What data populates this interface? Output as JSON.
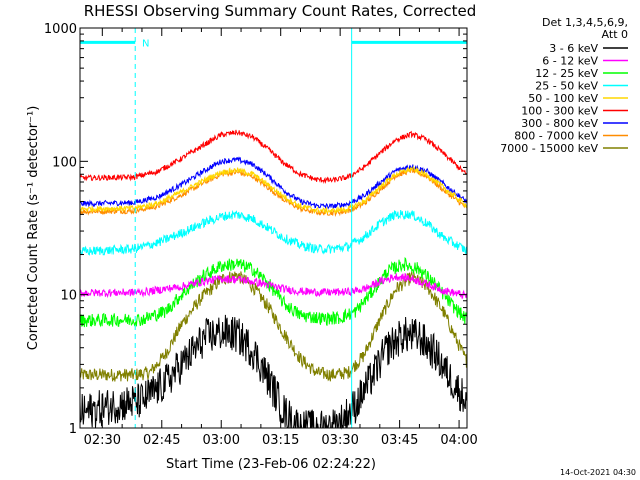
{
  "chart_data": {
    "type": "line",
    "title": "RHESSI Observing Summary Count Rates, Corrected",
    "xlabel": "Start Time (23-Feb-06 02:24:22)",
    "ylabel": "Corrected Count Rate (s⁻¹ detector⁻¹)",
    "yscale": "log",
    "ylim": [
      1,
      1000
    ],
    "xlim_minutes": [
      24.37,
      122.0
    ],
    "x_ticks": [
      {
        "label": "02:30",
        "minutes": 30
      },
      {
        "label": "02:45",
        "minutes": 45
      },
      {
        "label": "03:00",
        "minutes": 60
      },
      {
        "label": "03:15",
        "minutes": 75
      },
      {
        "label": "03:30",
        "minutes": 90
      },
      {
        "label": "03:45",
        "minutes": 105
      },
      {
        "label": "04:00",
        "minutes": 120
      }
    ],
    "y_ticks": [
      {
        "label": "1",
        "value": 1
      },
      {
        "label": "10",
        "value": 10
      },
      {
        "label": "100",
        "value": 100
      },
      {
        "label": "1000",
        "value": 1000
      }
    ],
    "legend_header": [
      "Det 1,3,4,5,6,9,",
      "Att 0"
    ],
    "series": [
      {
        "name": "3 - 6 keV",
        "color": "#000000",
        "t": [
          24.4,
          34,
          40,
          46,
          52,
          56,
          60,
          64,
          68,
          72,
          76,
          80,
          86,
          90,
          94,
          98,
          102,
          106,
          110,
          114,
          118,
          121.8
        ],
        "v": [
          1.3,
          1.5,
          1.6,
          2.2,
          3.5,
          4.8,
          5.2,
          5.0,
          3.8,
          2.3,
          1.3,
          1.0,
          1.0,
          1.1,
          1.5,
          2.4,
          4.0,
          5.0,
          4.8,
          3.6,
          2.3,
          1.6
        ],
        "noise": 0.14
      },
      {
        "name": "6 - 12 keV",
        "color": "#ff00ff",
        "t": [
          24.4,
          40,
          50,
          55,
          60,
          65,
          70,
          76,
          80,
          86,
          92,
          96,
          100,
          104,
          108,
          112,
          116,
          121.8
        ],
        "v": [
          10.3,
          10.4,
          11.5,
          12.5,
          13.2,
          13.0,
          12.2,
          11.0,
          10.6,
          10.4,
          10.5,
          11.0,
          12.5,
          13.7,
          13.2,
          12.0,
          10.8,
          9.8
        ],
        "noise": 0.03
      },
      {
        "name": "12 - 25 keV",
        "color": "#00ff00",
        "t": [
          24.4,
          40,
          46,
          50,
          55,
          60,
          64,
          68,
          72,
          76,
          80,
          86,
          90,
          94,
          98,
          102,
          106,
          110,
          114,
          118,
          121.8
        ],
        "v": [
          6.4,
          6.5,
          7.5,
          10.0,
          13.5,
          16.5,
          17.0,
          15.5,
          12.0,
          8.5,
          7.0,
          6.6,
          6.7,
          7.5,
          10.5,
          15.0,
          17.0,
          15.5,
          12.0,
          8.5,
          6.5
        ],
        "noise": 0.05
      },
      {
        "name": "25 - 50 keV",
        "color": "#00ffff",
        "t": [
          24.4,
          38,
          44,
          50,
          56,
          60,
          64,
          68,
          72,
          76,
          80,
          84,
          88,
          92,
          96,
          100,
          104,
          108,
          112,
          116,
          121.8
        ],
        "v": [
          21.0,
          22.0,
          24.5,
          29.0,
          35.0,
          38.5,
          40.0,
          37.0,
          31.5,
          26.5,
          23.5,
          22.0,
          22.0,
          23.0,
          27.0,
          34.0,
          40.0,
          40.0,
          34.0,
          27.0,
          21.5
        ],
        "noise": 0.035
      },
      {
        "name": "50 - 100 keV",
        "color": "#ffd700",
        "t": [
          24.4,
          38,
          44,
          50,
          56,
          60,
          64,
          68,
          72,
          76,
          80,
          84,
          88,
          92,
          96,
          100,
          104,
          108,
          112,
          116,
          121.8
        ],
        "v": [
          44.0,
          44.5,
          48.5,
          59.0,
          73.0,
          83.0,
          86.0,
          80.0,
          66.0,
          54.0,
          46.0,
          43.0,
          42.5,
          44.0,
          50.0,
          64.0,
          80.0,
          88.0,
          79.0,
          64.0,
          47.0
        ],
        "noise": 0.02
      },
      {
        "name": "100 - 300 keV",
        "color": "#ff0000",
        "t": [
          24.4,
          38,
          44,
          50,
          56,
          60,
          64,
          68,
          72,
          76,
          80,
          84,
          88,
          92,
          96,
          100,
          104,
          108,
          112,
          116,
          121.8
        ],
        "v": [
          75.0,
          76.0,
          84.0,
          105.0,
          135.0,
          158.0,
          165.0,
          152.0,
          122.0,
          96.0,
          80.0,
          73.0,
          72.0,
          76.0,
          90.0,
          115.0,
          145.0,
          160.0,
          145.0,
          115.0,
          80.0
        ],
        "noise": 0.02
      },
      {
        "name": "300 - 800 keV",
        "color": "#0000ff",
        "t": [
          24.4,
          38,
          44,
          50,
          56,
          60,
          64,
          68,
          72,
          76,
          80,
          84,
          88,
          92,
          96,
          100,
          104,
          108,
          112,
          116,
          121.8
        ],
        "v": [
          48.0,
          49.0,
          54.0,
          67.0,
          86.0,
          100.0,
          103.0,
          95.0,
          77.0,
          60.0,
          50.0,
          46.5,
          46.0,
          48.0,
          55.0,
          69.0,
          85.0,
          92.0,
          84.0,
          68.0,
          50.0
        ],
        "noise": 0.02
      },
      {
        "name": "800 - 7000 keV",
        "color": "#ff8c00",
        "t": [
          24.4,
          38,
          44,
          50,
          56,
          60,
          64,
          68,
          72,
          76,
          80,
          84,
          88,
          92,
          96,
          100,
          104,
          108,
          112,
          116,
          121.8
        ],
        "v": [
          42.0,
          42.5,
          46.0,
          56.0,
          70.0,
          80.0,
          83.0,
          77.0,
          63.0,
          51.0,
          44.0,
          41.5,
          41.0,
          42.5,
          48.0,
          61.0,
          78.0,
          86.0,
          77.0,
          61.0,
          45.0
        ],
        "noise": 0.02
      },
      {
        "name": "7000 - 15000 keV",
        "color": "#808000",
        "t": [
          24.4,
          38,
          42,
          46,
          50,
          55,
          60,
          64,
          68,
          72,
          76,
          80,
          84,
          88,
          92,
          96,
          100,
          104,
          108,
          112,
          116,
          121.8
        ],
        "v": [
          2.5,
          2.5,
          2.6,
          3.6,
          6.0,
          9.5,
          13.0,
          14.0,
          11.5,
          8.0,
          5.0,
          3.3,
          2.6,
          2.5,
          2.6,
          3.5,
          6.5,
          11.0,
          13.5,
          11.5,
          7.5,
          3.2
        ],
        "noise": 0.05
      }
    ],
    "indicators": {
      "color": "#00ffff",
      "night_bars": [
        [
          24.4,
          38.3
        ],
        [
          92.9,
          122.0
        ]
      ],
      "night_bar_value": 780,
      "night_label": "N",
      "night_label_minutes": 40.0,
      "dashed_lines_minutes": [
        38.3,
        122.0
      ],
      "solid_lines_minutes": [
        92.9
      ]
    }
  },
  "footer_timestamp": "14-Oct-2021 04:30"
}
